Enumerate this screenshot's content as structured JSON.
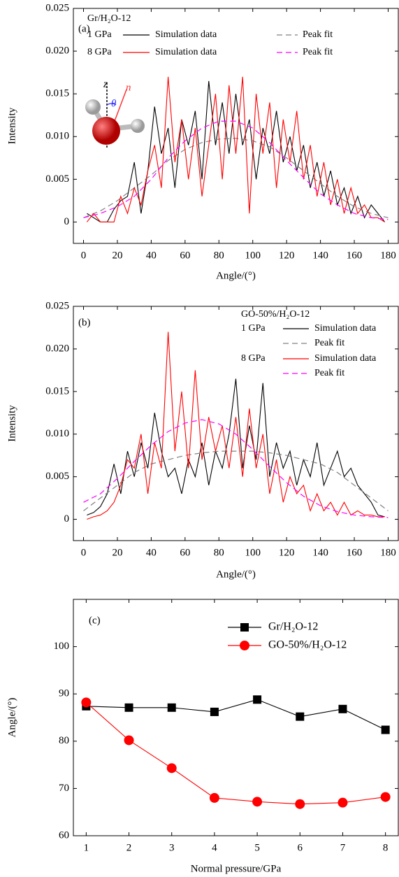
{
  "chart_data": [
    {
      "type": "line",
      "panel_label": "(a)",
      "xlabel": "Angle/(°)",
      "ylabel": "Intensity",
      "legend_title": "Gr/H₂O-12",
      "xlim": [
        -6,
        186
      ],
      "ylim": [
        -0.0025,
        0.025
      ],
      "xticks": [
        0,
        20,
        40,
        60,
        80,
        100,
        120,
        140,
        160,
        180
      ],
      "yticks": [
        0,
        0.005,
        {
          "value": 0.01,
          "label": "0.010"
        },
        0.015,
        {
          "value": 0.02,
          "label": "0.020"
        },
        0.025
      ],
      "inset_labels": [
        "z",
        "n",
        "θ"
      ],
      "series": [
        {
          "name": "Simulation data",
          "group": "1 GPa",
          "color": "#000000",
          "dash": false,
          "x": [
            2,
            6,
            10,
            14,
            18,
            22,
            26,
            30,
            34,
            38,
            42,
            46,
            50,
            54,
            58,
            62,
            66,
            70,
            74,
            78,
            82,
            86,
            90,
            94,
            98,
            102,
            106,
            110,
            114,
            118,
            122,
            126,
            130,
            134,
            138,
            142,
            146,
            150,
            154,
            158,
            162,
            166,
            170,
            174,
            178
          ],
          "values": [
            0.001,
            0.0005,
            0,
            0,
            0.0015,
            0.0025,
            0.003,
            0.007,
            0.001,
            0.006,
            0.0135,
            0.008,
            0.011,
            0.004,
            0.012,
            0.009,
            0.013,
            0.005,
            0.0165,
            0.009,
            0.014,
            0.008,
            0.015,
            0.009,
            0.012,
            0.005,
            0.011,
            0.008,
            0.013,
            0.007,
            0.01,
            0.006,
            0.009,
            0.004,
            0.007,
            0.003,
            0.006,
            0.002,
            0.004,
            0.001,
            0.003,
            0.0005,
            0.002,
            0.001,
            0
          ]
        },
        {
          "name": "Peak fit",
          "color": "#808080",
          "dash": true,
          "x": [
            0,
            10,
            20,
            30,
            40,
            50,
            60,
            70,
            80,
            90,
            100,
            110,
            120,
            130,
            140,
            150,
            160,
            170,
            180
          ],
          "values": [
            0.0005,
            0.0013,
            0.0025,
            0.004,
            0.0055,
            0.0072,
            0.0085,
            0.0093,
            0.0097,
            0.0098,
            0.0095,
            0.0088,
            0.0075,
            0.006,
            0.0045,
            0.003,
            0.0018,
            0.001,
            0.0005
          ]
        },
        {
          "name": "Simulation data",
          "group": "8 GPa",
          "color": "#ff0000",
          "dash": false,
          "x": [
            2,
            6,
            10,
            14,
            18,
            22,
            26,
            30,
            34,
            38,
            42,
            46,
            50,
            54,
            58,
            62,
            66,
            70,
            74,
            78,
            82,
            86,
            90,
            94,
            98,
            102,
            106,
            110,
            114,
            118,
            122,
            126,
            130,
            134,
            138,
            142,
            146,
            150,
            154,
            158,
            162,
            166,
            170,
            174,
            178
          ],
          "values": [
            0,
            0.001,
            0,
            0,
            0,
            0.003,
            0.001,
            0.004,
            0.002,
            0.006,
            0.009,
            0.004,
            0.017,
            0.007,
            0.012,
            0.005,
            0.011,
            0.003,
            0.009,
            0.015,
            0.005,
            0.016,
            0.008,
            0.017,
            0.001,
            0.015,
            0.008,
            0.014,
            0.004,
            0.012,
            0.007,
            0.013,
            0.005,
            0.009,
            0.003,
            0.007,
            0.002,
            0.005,
            0.001,
            0.004,
            0.001,
            0.002,
            0.0005,
            0.0005,
            0
          ]
        },
        {
          "name": "Peak fit",
          "color": "#ff00ff",
          "dash": true,
          "x": [
            0,
            10,
            20,
            30,
            40,
            50,
            60,
            70,
            80,
            90,
            100,
            110,
            120,
            130,
            140,
            150,
            160,
            170,
            180
          ],
          "values": [
            0.0005,
            0.001,
            0.0018,
            0.003,
            0.005,
            0.0075,
            0.0095,
            0.011,
            0.0118,
            0.0118,
            0.011,
            0.0093,
            0.0072,
            0.0052,
            0.0033,
            0.002,
            0.001,
            0.0005,
            0.0003
          ]
        }
      ]
    },
    {
      "type": "line",
      "panel_label": "(b)",
      "xlabel": "Angle/(°)",
      "ylabel": "Intensity",
      "legend_title": "GO-50%/H₂O-12",
      "xlim": [
        -6,
        186
      ],
      "ylim": [
        -0.0025,
        0.025
      ],
      "xticks": [
        0,
        20,
        40,
        60,
        80,
        100,
        120,
        140,
        160,
        180
      ],
      "yticks": [
        0,
        0.005,
        {
          "value": 0.01,
          "label": "0.010"
        },
        0.015,
        {
          "value": 0.02,
          "label": "0.020"
        },
        0.025
      ],
      "series": [
        {
          "name": "Simulation data",
          "group": "1 GPa",
          "color": "#000000",
          "dash": false,
          "x": [
            2,
            6,
            10,
            14,
            18,
            22,
            26,
            30,
            34,
            38,
            42,
            46,
            50,
            54,
            58,
            62,
            66,
            70,
            74,
            78,
            82,
            86,
            90,
            94,
            98,
            102,
            106,
            110,
            114,
            118,
            122,
            126,
            130,
            134,
            138,
            142,
            146,
            150,
            154,
            158,
            162,
            166,
            170,
            174,
            178
          ],
          "values": [
            0.0005,
            0.0008,
            0.0015,
            0.003,
            0.0065,
            0.003,
            0.008,
            0.005,
            0.009,
            0.006,
            0.0125,
            0.008,
            0.005,
            0.006,
            0.003,
            0.007,
            0.005,
            0.009,
            0.004,
            0.008,
            0.006,
            0.01,
            0.0165,
            0.006,
            0.011,
            0.007,
            0.016,
            0.005,
            0.009,
            0.006,
            0.008,
            0.004,
            0.007,
            0.005,
            0.009,
            0.004,
            0.006,
            0.008,
            0.005,
            0.006,
            0.004,
            0.003,
            0.002,
            0.0005,
            0.0003
          ]
        },
        {
          "name": "Peak fit",
          "color": "#808080",
          "dash": true,
          "x": [
            0,
            10,
            20,
            30,
            40,
            50,
            60,
            70,
            80,
            90,
            100,
            110,
            120,
            130,
            140,
            150,
            160,
            170,
            180
          ],
          "values": [
            0.001,
            0.0025,
            0.004,
            0.0055,
            0.0065,
            0.007,
            0.0075,
            0.0078,
            0.008,
            0.008,
            0.008,
            0.0078,
            0.0075,
            0.007,
            0.0065,
            0.0055,
            0.004,
            0.0025,
            0.001
          ]
        },
        {
          "name": "Simulation data",
          "group": "8 GPa",
          "color": "#ff0000",
          "dash": false,
          "x": [
            2,
            6,
            10,
            14,
            18,
            22,
            26,
            30,
            34,
            38,
            42,
            46,
            50,
            54,
            58,
            62,
            66,
            70,
            74,
            78,
            82,
            86,
            90,
            94,
            98,
            102,
            106,
            110,
            114,
            118,
            122,
            126,
            130,
            134,
            138,
            142,
            146,
            150,
            154,
            158,
            162,
            166,
            170,
            174,
            178
          ],
          "values": [
            0,
            0.0003,
            0.0005,
            0.001,
            0.002,
            0.004,
            0.007,
            0.006,
            0.01,
            0.003,
            0.009,
            0.006,
            0.022,
            0.008,
            0.015,
            0.006,
            0.0175,
            0.007,
            0.012,
            0.008,
            0.011,
            0.006,
            0.012,
            0.005,
            0.013,
            0.006,
            0.01,
            0.003,
            0.007,
            0.002,
            0.005,
            0.003,
            0.004,
            0.001,
            0.003,
            0.001,
            0.002,
            0.0005,
            0.002,
            0.0005,
            0.001,
            0.0005,
            0.0005,
            0.0003,
            0.0003
          ]
        },
        {
          "name": "Peak fit",
          "color": "#ff00ff",
          "dash": true,
          "x": [
            0,
            10,
            20,
            30,
            40,
            50,
            60,
            70,
            80,
            90,
            100,
            110,
            120,
            130,
            140,
            150,
            160,
            170,
            180
          ],
          "values": [
            0.002,
            0.003,
            0.0048,
            0.0068,
            0.0087,
            0.0103,
            0.0113,
            0.0117,
            0.0112,
            0.01,
            0.0082,
            0.0062,
            0.0043,
            0.0027,
            0.0016,
            0.0009,
            0.0005,
            0.0003,
            0.0002
          ]
        }
      ]
    },
    {
      "type": "line",
      "panel_label": "(c)",
      "xlabel": "Normal pressure/GPa",
      "ylabel": "Angle/(°)",
      "xlim": [
        0.7,
        8.3
      ],
      "ylim": [
        60,
        110
      ],
      "xticks": [
        1,
        2,
        3,
        4,
        5,
        6,
        7,
        8
      ],
      "yticks": [
        60,
        70,
        80,
        90,
        100
      ],
      "series": [
        {
          "name": "Gr/H₂O-12",
          "color": "#000000",
          "marker": "square",
          "dash": false,
          "x": [
            1,
            2,
            3,
            4,
            5,
            6,
            7,
            8
          ],
          "values": [
            87.4,
            87.1,
            87.1,
            86.2,
            88.8,
            85.2,
            86.8,
            82.4
          ]
        },
        {
          "name": "GO-50%/H₂O-12",
          "color": "#ff0000",
          "marker": "circle",
          "dash": false,
          "x": [
            1,
            2,
            3,
            4,
            5,
            6,
            7,
            8
          ],
          "values": [
            88.2,
            80.2,
            74.3,
            68.0,
            67.2,
            66.7,
            67.0,
            68.2
          ]
        }
      ]
    }
  ]
}
